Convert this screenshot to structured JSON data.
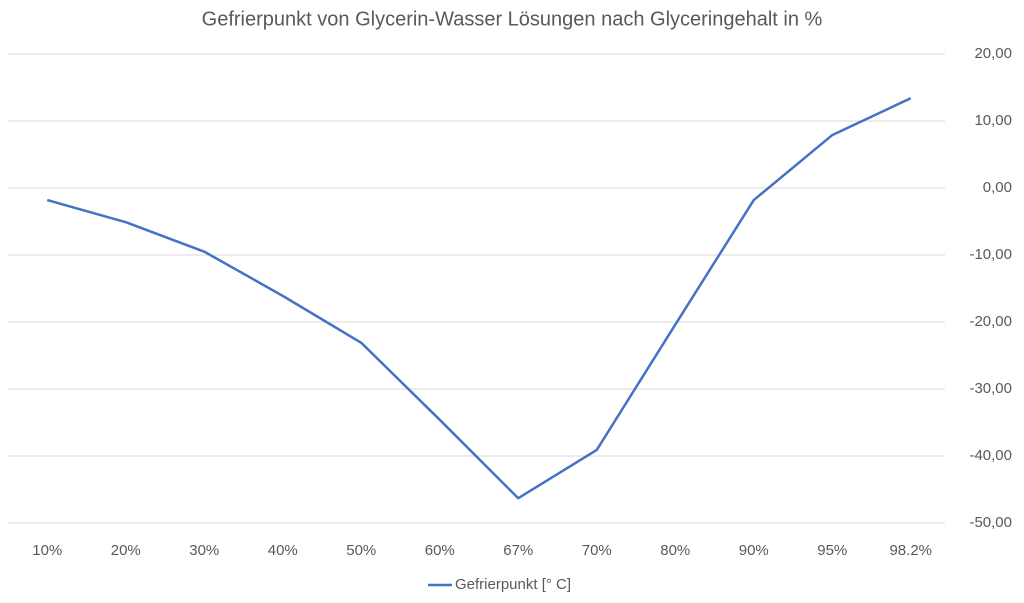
{
  "chart_data": {
    "type": "line",
    "title": "Gefrierpunkt von Glycerin-Wasser Lösungen nach Glyceringehalt in %",
    "categories": [
      "10%",
      "20%",
      "30%",
      "40%",
      "50%",
      "60%",
      "67%",
      "70%",
      "80%",
      "90%",
      "95%",
      "98.2%"
    ],
    "series": [
      {
        "name": "Gefrierpunkt [° C]",
        "color": "#4472c4",
        "values": [
          -1.8,
          -5.1,
          -9.5,
          -16.1,
          -23.1,
          -34.6,
          -46.3,
          -39.1,
          -20.4,
          -1.8,
          7.9,
          13.4
        ]
      }
    ],
    "ylim": [
      -50,
      20
    ],
    "yticks": [
      {
        "value": -50,
        "label": "-50,00"
      },
      {
        "value": -40,
        "label": "-40,00"
      },
      {
        "value": -30,
        "label": "-30,00"
      },
      {
        "value": -20,
        "label": "-20,00"
      },
      {
        "value": -10,
        "label": "-10,00"
      },
      {
        "value": 0,
        "label": "0,00"
      },
      {
        "value": 10,
        "label": "10,00"
      },
      {
        "value": 20,
        "label": "20,00"
      }
    ],
    "y_axis_side": "right",
    "grid": true,
    "legend": "bottom"
  }
}
